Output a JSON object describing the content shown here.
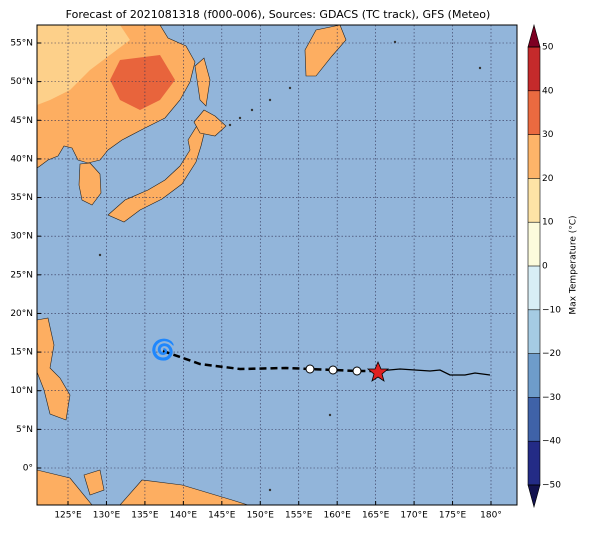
{
  "title": "Forecast of 2021081318 (f000-006), Sources: GDACS (TC track), GFS (Meteo)",
  "lon_ticks": [
    {
      "value": 125,
      "label": "125°E"
    },
    {
      "value": 130,
      "label": "130°E"
    },
    {
      "value": 135,
      "label": "135°E"
    },
    {
      "value": 140,
      "label": "140°E"
    },
    {
      "value": 145,
      "label": "145°E"
    },
    {
      "value": 150,
      "label": "150°E"
    },
    {
      "value": 155,
      "label": "155°E"
    },
    {
      "value": 160,
      "label": "160°E"
    },
    {
      "value": 165,
      "label": "165°E"
    },
    {
      "value": 170,
      "label": "170°E"
    },
    {
      "value": 175,
      "label": "175°E"
    },
    {
      "value": 180,
      "label": "180°"
    }
  ],
  "lat_ticks": [
    {
      "value": 55,
      "label": "55°N"
    },
    {
      "value": 50,
      "label": "50°N"
    },
    {
      "value": 45,
      "label": "45°N"
    },
    {
      "value": 40,
      "label": "40°N"
    },
    {
      "value": 35,
      "label": "35°N"
    },
    {
      "value": 30,
      "label": "30°N"
    },
    {
      "value": 25,
      "label": "25°N"
    },
    {
      "value": 20,
      "label": "20°N"
    },
    {
      "value": 15,
      "label": "15°N"
    },
    {
      "value": 10,
      "label": "10°N"
    },
    {
      "value": 5,
      "label": "5°N"
    },
    {
      "value": 0,
      "label": "0°"
    }
  ],
  "colorbar": {
    "label": "Max Temperature (°C)",
    "ticks": [
      {
        "value": -50,
        "label": "−50"
      },
      {
        "value": -40,
        "label": "−40"
      },
      {
        "value": -30,
        "label": "−30"
      },
      {
        "value": -20,
        "label": "−20"
      },
      {
        "value": -10,
        "label": "−10"
      },
      0,
      10,
      20,
      30,
      40,
      50
    ],
    "colors": [
      "#232b86",
      "#3f62a8",
      "#6e9cca",
      "#a5cbe3",
      "#d8eef5",
      "#fcfbdc",
      "#fde3a6",
      "#fdb469",
      "#ea6a40",
      "#c42a2b"
    ],
    "under_color": "#12124f",
    "over_color": "#7d0022"
  }
}
